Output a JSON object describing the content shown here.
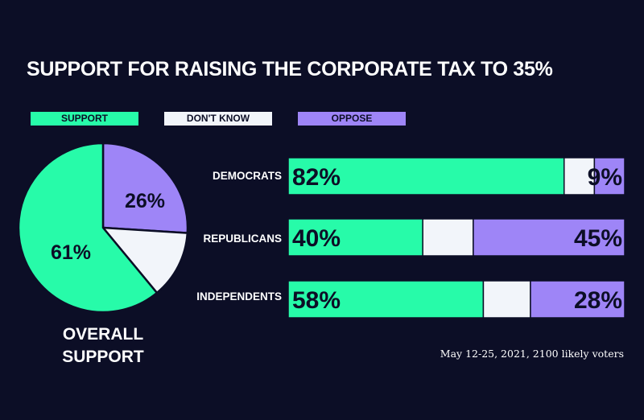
{
  "colors": {
    "background": "#0c0e26",
    "support": "#27fba9",
    "dont_know": "#f2f5fa",
    "oppose": "#9e85f7",
    "text_dark": "#0c0e26",
    "text_light": "#ffffff"
  },
  "chart_data": [
    {
      "type": "pie",
      "title": "SUPPORT FOR RAISING THE CORPORATE TAX TO 35%",
      "caption_line1": "OVERALL",
      "caption_line2": "SUPPORT",
      "slices": [
        {
          "name": "SUPPORT",
          "value": 61,
          "label": "61%"
        },
        {
          "name": "DON'T KNOW",
          "value": 13,
          "label": ""
        },
        {
          "name": "OPPOSE",
          "value": 26,
          "label": "26%"
        }
      ]
    },
    {
      "type": "bar",
      "stacked": true,
      "orientation": "horizontal",
      "categories": [
        "DEMOCRATS",
        "REPUBLICANS",
        "INDEPENDENTS"
      ],
      "series": [
        {
          "name": "SUPPORT",
          "values": [
            82,
            40,
            58
          ],
          "labels": [
            "82%",
            "40%",
            "58%"
          ]
        },
        {
          "name": "DON'T KNOW",
          "values": [
            9,
            15,
            14
          ],
          "labels": [
            "",
            "",
            ""
          ]
        },
        {
          "name": "OPPOSE",
          "values": [
            9,
            45,
            28
          ],
          "labels": [
            "9%",
            "45%",
            "28%"
          ]
        }
      ],
      "legend": [
        "SUPPORT",
        "DON'T KNOW",
        "OPPOSE"
      ],
      "legend_position": "top"
    }
  ],
  "title": "SUPPORT FOR RAISING THE CORPORATE TAX TO 35%",
  "legend": {
    "support": "SUPPORT",
    "dont_know": "DON'T KNOW",
    "oppose": "OPPOSE"
  },
  "pie_caption": {
    "line1": "OVERALL",
    "line2": "SUPPORT"
  },
  "footnote": "May 12-25, 2021, 2100 likely voters"
}
